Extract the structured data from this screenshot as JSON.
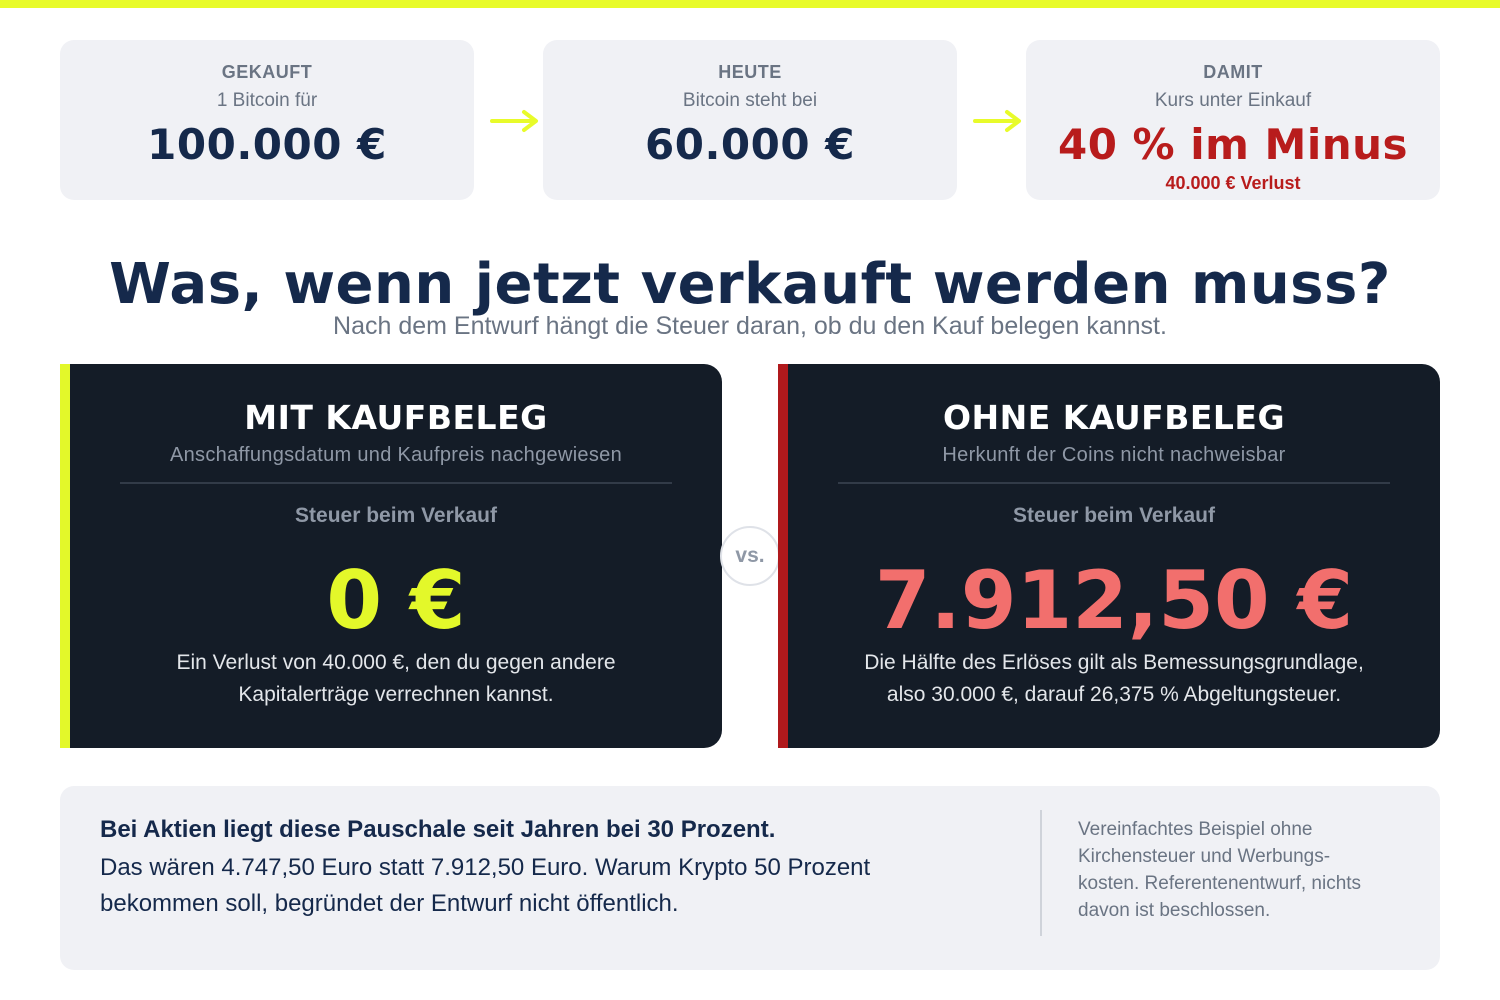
{
  "colors": {
    "accent": "#e8fb2a",
    "navy": "#15294b",
    "panel_bg": "#141c27",
    "loss_red": "#b81c1c",
    "tax_red": "#f26f6d",
    "card_bg": "#f0f1f5"
  },
  "stats": [
    {
      "kicker": "GEKAUFT",
      "sub": "1 Bitcoin für",
      "value": "100.000 €",
      "note": ""
    },
    {
      "kicker": "HEUTE",
      "sub": "Bitcoin steht bei",
      "value": "60.000 €",
      "note": ""
    },
    {
      "kicker": "DAMIT",
      "sub": "Kurs unter Einkauf",
      "value": "40 % im Minus",
      "note": "40.000 € Verlust"
    }
  ],
  "icons": {
    "arrow": "arrow-right-icon"
  },
  "headline": "Was, wenn jetzt verkauft werden muss?",
  "subheadline": "Nach dem Entwurf hängt die Steuer daran, ob du den Kauf belegen kannst.",
  "panels": {
    "with_receipt": {
      "title": "MIT KAUFBELEG",
      "sub": "Anschaffungsdatum und Kaufpreis nachgewiesen",
      "label": "Steuer beim Verkauf",
      "value": "0 €",
      "desc": "Ein Verlust von 40.000 €, den du gegen andere Kapitalerträge verrechnen kannst."
    },
    "without_receipt": {
      "title": "OHNE KAUFBELEG",
      "sub": "Herkunft der Coins nicht nachweisbar",
      "label": "Steuer beim Verkauf",
      "value": "7.912,50 €",
      "desc": "Die Hälfte des Erlöses gilt als Bemessungsgrundlage, also 30.000 €, darauf 26,375 % Abgeltungsteuer."
    }
  },
  "vs_label": "vs.",
  "footer": {
    "bold": "Bei Aktien liegt diese Pauschale seit Jahren bei 30 Prozent.",
    "text": "Das wären 4.747,50 Euro statt 7.912,50 Euro. Warum Krypto 50 Prozent bekommen soll, begründet der Entwurf nicht öffentlich.",
    "note": "Vereinfachtes Beispiel ohne Kirchensteuer und Werbungs-kosten. Referentenentwurf, nichts davon ist beschlossen."
  }
}
